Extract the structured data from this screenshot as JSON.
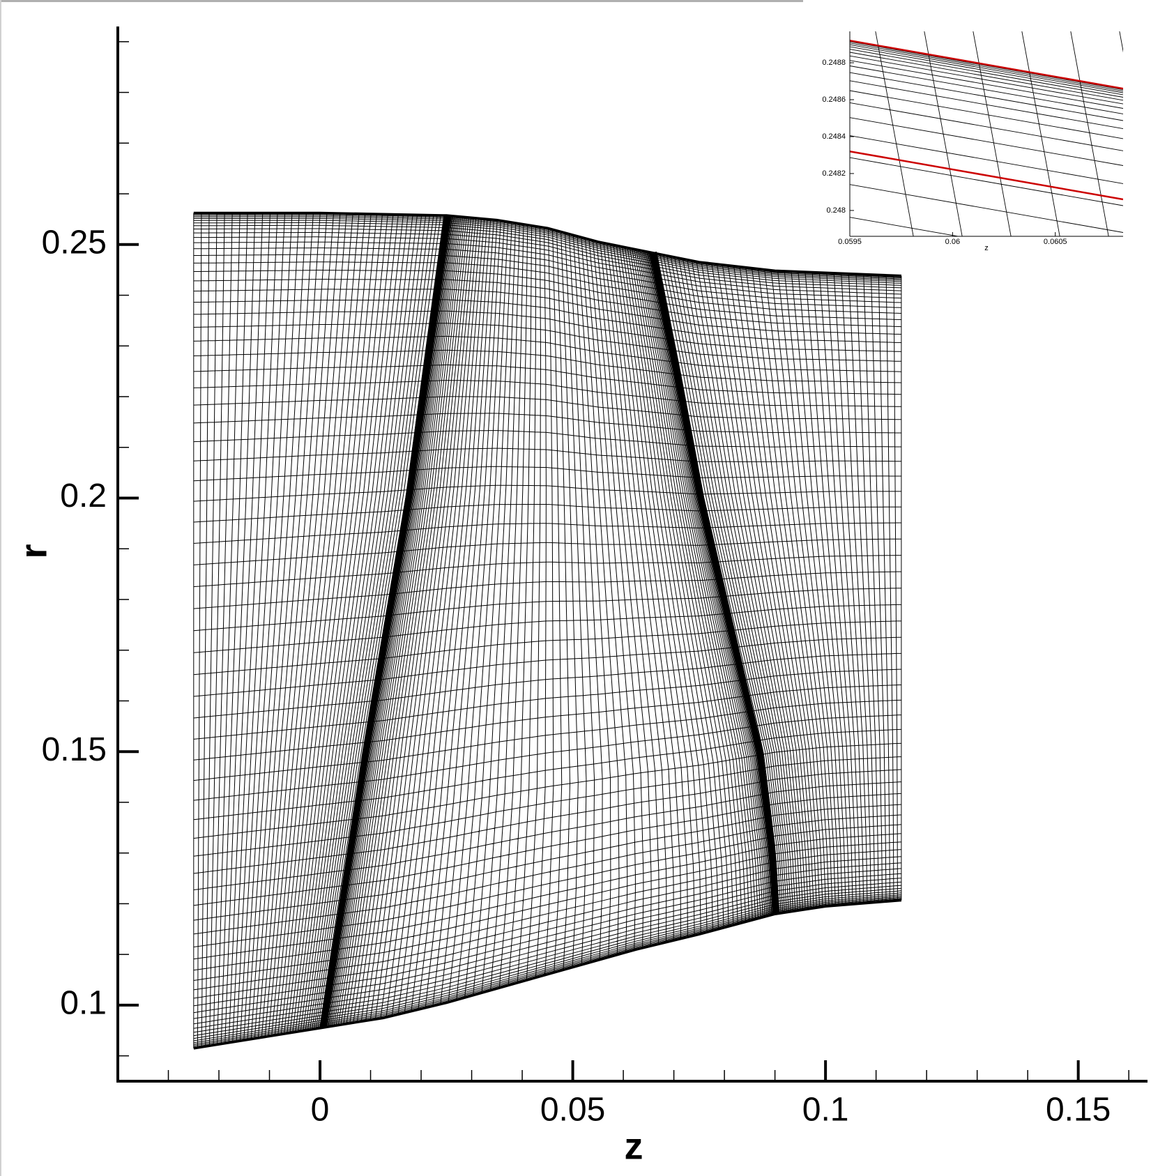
{
  "chart_data": [
    {
      "type": "mesh",
      "xlabel": "z",
      "ylabel": "r",
      "xlim": [
        -0.04,
        0.1637
      ],
      "ylim": [
        0.085,
        0.293
      ],
      "xticks": [
        0,
        0.05,
        0.1,
        0.15
      ],
      "yticks": [
        0.1,
        0.15,
        0.2,
        0.25
      ],
      "xminorticks": [
        -0.03,
        -0.02,
        -0.01,
        0.01,
        0.02,
        0.03,
        0.04,
        0.06,
        0.07,
        0.08,
        0.09,
        0.11,
        0.12,
        0.13,
        0.14,
        0.16
      ],
      "yminorticks": [
        0.09,
        0.11,
        0.12,
        0.13,
        0.14,
        0.16,
        0.17,
        0.18,
        0.19,
        0.21,
        0.22,
        0.23,
        0.24,
        0.26,
        0.27,
        0.28,
        0.29
      ],
      "color": "#000000",
      "hub": {
        "z": [
          -0.025,
          0,
          0.0125,
          0.025,
          0.0375,
          0.05,
          0.0625,
          0.075,
          0.09,
          0.1,
          0.115
        ],
        "r": [
          0.0915,
          0.0955,
          0.0975,
          0.1005,
          0.104,
          0.1075,
          0.111,
          0.114,
          0.118,
          0.1195,
          0.1207
        ]
      },
      "shroud": {
        "z": [
          -0.025,
          0,
          0.025,
          0.035,
          0.045,
          0.055,
          0.065,
          0.075,
          0.09,
          0.115
        ],
        "r": [
          0.2562,
          0.2562,
          0.2557,
          0.2548,
          0.2532,
          0.2505,
          0.2485,
          0.2465,
          0.2448,
          0.2438
        ]
      },
      "block_interfaces": [
        {
          "z": [
            0.0006,
            0.009,
            0.0175,
            0.0251
          ],
          "r": [
            0.0957,
            0.15,
            0.2,
            0.2555
          ]
        },
        {
          "z": [
            0.0902,
            0.0895,
            0.087,
            0.0835,
            0.0754,
            0.0709,
            0.066
          ],
          "r": [
            0.1183,
            0.13,
            0.15,
            0.165,
            0.2,
            0.224,
            0.2485
          ]
        }
      ]
    },
    {
      "type": "mesh",
      "xlabel": "z",
      "xlim": [
        0.0595,
        0.06083
      ],
      "ylim": [
        0.24786,
        0.24897
      ],
      "xticks": [
        0.0595,
        0.06,
        0.0605
      ],
      "yticks": [
        0.248,
        0.2482,
        0.2484,
        0.2486,
        0.2488
      ],
      "series": [
        {
          "color": "#cc0000",
          "x": [
            0.0595,
            0.06083
          ],
          "values": [
            0.24892,
            0.24866
          ]
        },
        {
          "color": "#cc0000",
          "x": [
            0.0595,
            0.06083
          ],
          "values": [
            0.24832,
            0.24806
          ]
        }
      ]
    }
  ]
}
